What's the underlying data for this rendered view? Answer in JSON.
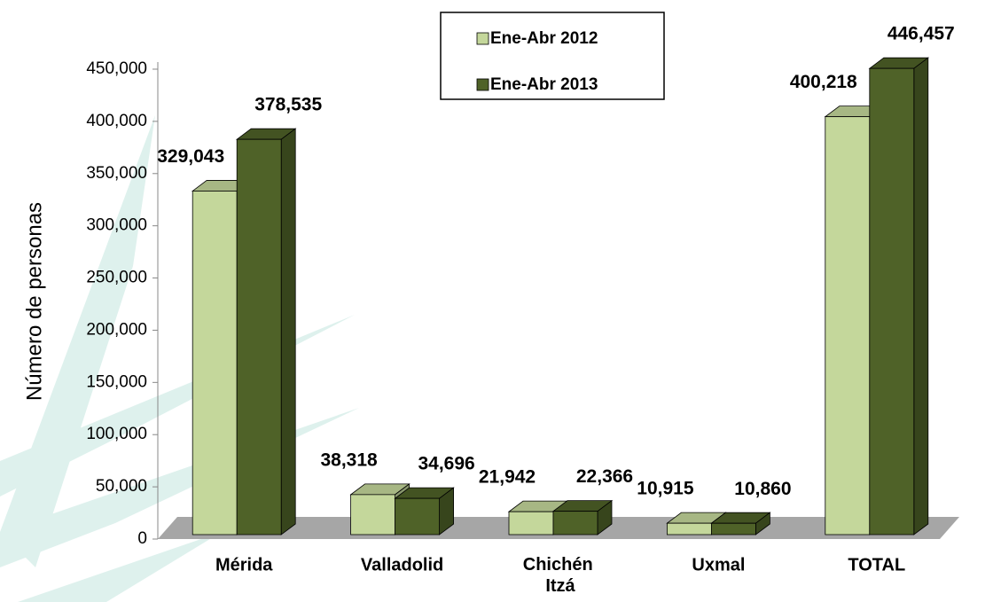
{
  "chart_data": {
    "type": "bar3d",
    "y_label": "Número de personas",
    "categories": [
      "Mérida",
      "Valladolid",
      "Chichén Itzá",
      "Uxmal",
      "TOTAL"
    ],
    "series": [
      {
        "name": "Ene-Abr 2012",
        "color": "#c4d79b",
        "values": [
          329043,
          38318,
          21942,
          10915,
          400218
        ],
        "value_labels": [
          "329,043",
          "38,318",
          "21,942",
          "10,915",
          "400,218"
        ]
      },
      {
        "name": "Ene-Abr 2013",
        "color": "#4f6228",
        "values": [
          378535,
          34696,
          22366,
          10860,
          446457
        ],
        "value_labels": [
          "378,535",
          "34,696",
          "22,366",
          "10,860",
          "446,457"
        ]
      }
    ],
    "ylim": [
      0,
      450000
    ],
    "yticks": [
      0,
      {
        "value": 50000,
        "label": "50,000"
      },
      {
        "value": 100000,
        "label": "100,000"
      },
      {
        "value": 150000,
        "label": "150,000"
      },
      {
        "value": 200000,
        "label": "200,000"
      },
      {
        "value": 250000,
        "label": "250,000"
      },
      {
        "value": 300000,
        "label": "300,000"
      },
      {
        "value": 350000,
        "label": "350,000"
      },
      {
        "value": 400000,
        "label": "400,000"
      },
      {
        "value": 450000,
        "label": "450,000"
      }
    ],
    "legend": "top"
  }
}
